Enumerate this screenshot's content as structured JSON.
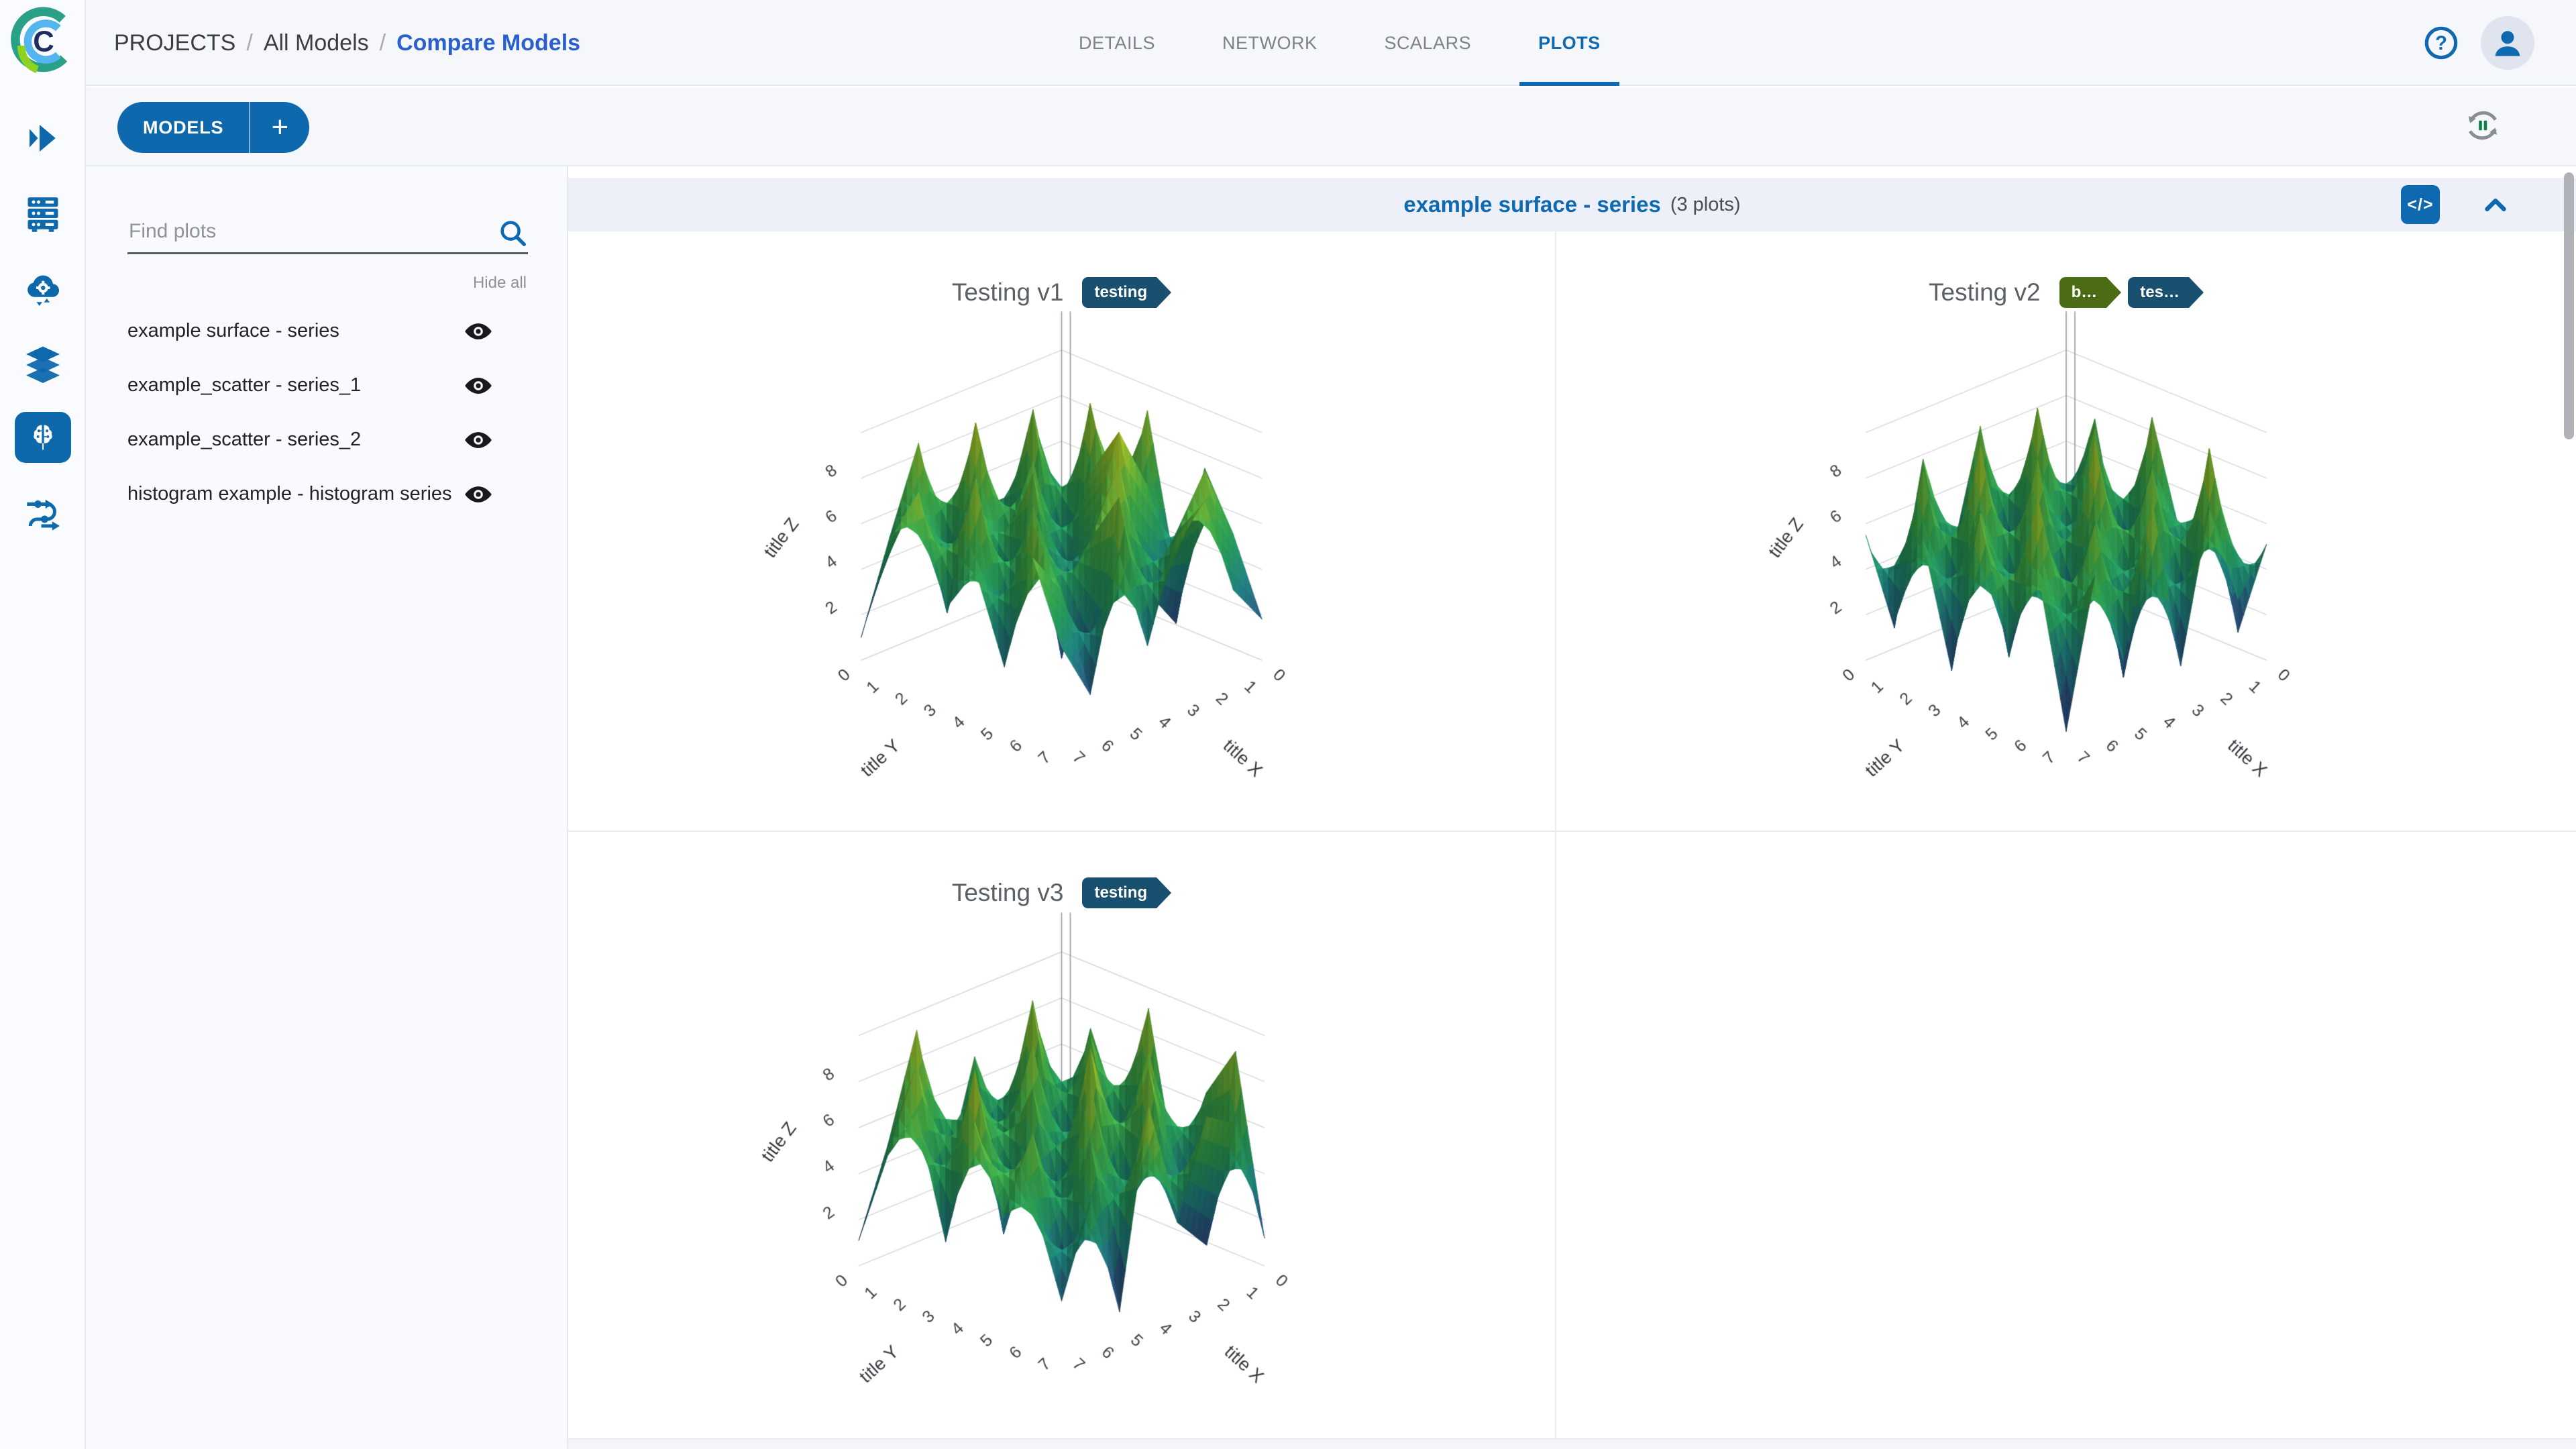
{
  "header": {
    "breadcrumb": [
      {
        "label": "PROJECTS"
      },
      {
        "label": "All Models"
      },
      {
        "label": "Compare Models"
      }
    ],
    "breadcrumb_separator": "/",
    "tabs": [
      {
        "label": "DETAILS",
        "active": false
      },
      {
        "label": "NETWORK",
        "active": false
      },
      {
        "label": "SCALARS",
        "active": false
      },
      {
        "label": "PLOTS",
        "active": true
      }
    ]
  },
  "nav_rail": {
    "items": [
      {
        "name": "expand-nav",
        "active": false
      },
      {
        "name": "storage",
        "active": false
      },
      {
        "name": "workers-queues",
        "active": false
      },
      {
        "name": "datasets",
        "active": false
      },
      {
        "name": "models",
        "active": true
      },
      {
        "name": "pipelines",
        "active": false
      }
    ]
  },
  "toolbar": {
    "models_label": "MODELS",
    "add_label": "+"
  },
  "plots_panel": {
    "search_placeholder": "Find plots",
    "hide_all_label": "Hide all",
    "items": [
      {
        "label": "example surface - series",
        "visible": true
      },
      {
        "label": "example_scatter - series_1",
        "visible": true
      },
      {
        "label": "example_scatter - series_2",
        "visible": true
      },
      {
        "label": "histogram example - histogram series",
        "visible": true
      }
    ]
  },
  "section": {
    "title": "example surface - series",
    "count": "(3 plots)",
    "embed_label": "</>"
  },
  "colors": {
    "primary_blue": "#0e69b1",
    "breadcrumb_link_blue": "#2a5fd0",
    "tag_navy": "#19506f",
    "tag_green": "#4c6b15",
    "panel_bg": "#f9fafd",
    "section_bar_bg": "#edf0f9",
    "scrollbar": "#b1b2b7",
    "surface_colorscale": [
      "#413487",
      "#2e648f",
      "#23908d",
      "#2aa964",
      "#48bd4e",
      "#90d43a",
      "#d2e227",
      "#f6e61f"
    ]
  },
  "chart_data": [
    {
      "type": "surface",
      "title": "Testing v1",
      "tags": [
        {
          "label": "testing",
          "color": "#19506f"
        }
      ],
      "xlabel": "title X",
      "ylabel": "title Y",
      "zlabel": "title Z",
      "x_ticks": [
        0,
        1,
        2,
        3,
        4,
        5,
        6,
        7
      ],
      "y_ticks": [
        0,
        1,
        2,
        3,
        4,
        5,
        6,
        7
      ],
      "z_ticks": [
        2,
        4,
        6,
        8
      ],
      "z_range": [
        0,
        10
      ],
      "z": [
        [
          1.2,
          6.8,
          3.1,
          8.9,
          2.2,
          7.4,
          5.0,
          1.8
        ],
        [
          7.9,
          2.4,
          9.2,
          4.1,
          6.6,
          1.1,
          8.3,
          3.6
        ],
        [
          3.4,
          8.8,
          1.5,
          7.2,
          9.5,
          3.0,
          6.1,
          8.0
        ],
        [
          6.2,
          0.8,
          7.7,
          2.9,
          5.4,
          9.1,
          1.9,
          6.9
        ],
        [
          2.1,
          9.4,
          4.6,
          8.2,
          0.6,
          6.3,
          8.7,
          2.7
        ],
        [
          8.5,
          3.7,
          6.5,
          1.4,
          7.8,
          4.4,
          0.9,
          7.3
        ],
        [
          4.9,
          7.1,
          2.6,
          9.0,
          3.3,
          8.1,
          5.6,
          1.6
        ],
        [
          1.0,
          5.8,
          8.4,
          3.9,
          6.0,
          2.3,
          7.6,
          4.2
        ]
      ]
    },
    {
      "type": "surface",
      "title": "Testing v2",
      "tags": [
        {
          "label": "b…",
          "color": "#4c6b15"
        },
        {
          "label": "tes…",
          "color": "#19506f"
        }
      ],
      "xlabel": "title X",
      "ylabel": "title Y",
      "zlabel": "title Z",
      "x_ticks": [
        0,
        1,
        2,
        3,
        4,
        5,
        6,
        7
      ],
      "y_ticks": [
        0,
        1,
        2,
        3,
        4,
        5,
        6,
        7
      ],
      "z_ticks": [
        2,
        4,
        6,
        8
      ],
      "z_range": [
        0,
        10
      ],
      "z": [
        [
          2.8,
          7.5,
          1.2,
          8.6,
          3.9,
          6.2,
          0.7,
          5.1
        ],
        [
          6.9,
          0.4,
          8.1,
          2.5,
          7.0,
          1.6,
          9.3,
          3.2
        ],
        [
          1.8,
          9.0,
          3.5,
          6.7,
          0.9,
          8.4,
          2.1,
          7.7
        ],
        [
          8.2,
          2.0,
          7.3,
          0.5,
          9.6,
          3.8,
          6.4,
          1.3
        ],
        [
          3.0,
          6.6,
          1.0,
          8.8,
          2.4,
          7.2,
          0.8,
          9.1
        ],
        [
          7.8,
          1.5,
          9.4,
          3.3,
          6.1,
          0.6,
          8.0,
          2.6
        ],
        [
          0.9,
          8.3,
          2.9,
          7.6,
          1.7,
          9.2,
          4.0,
          6.8
        ],
        [
          5.5,
          2.2,
          6.3,
          1.1,
          8.5,
          3.4,
          7.1,
          0.5
        ]
      ]
    },
    {
      "type": "surface",
      "title": "Testing v3",
      "tags": [
        {
          "label": "testing",
          "color": "#19506f"
        }
      ],
      "xlabel": "title X",
      "ylabel": "title Y",
      "zlabel": "title Z",
      "x_ticks": [
        0,
        1,
        2,
        3,
        4,
        5,
        6,
        7
      ],
      "y_ticks": [
        0,
        1,
        2,
        3,
        4,
        5,
        6,
        7
      ],
      "z_ticks": [
        2,
        4,
        6,
        8
      ],
      "z_range": [
        0,
        10
      ],
      "z": [
        [
          1.6,
          7.2,
          3.8,
          9.1,
          2.0,
          6.5,
          8.8,
          1.2
        ],
        [
          8.4,
          2.7,
          7.9,
          1.3,
          8.2,
          3.5,
          0.9,
          6.7
        ],
        [
          3.1,
          9.3,
          1.8,
          6.4,
          4.2,
          8.6,
          2.4,
          7.5
        ],
        [
          7.0,
          0.7,
          8.5,
          2.8,
          9.4,
          1.5,
          6.2,
          3.9
        ],
        [
          2.3,
          6.9,
          4.4,
          7.7,
          0.8,
          8.9,
          3.0,
          9.0
        ],
        [
          9.2,
          3.3,
          8.0,
          1.9,
          6.6,
          2.9,
          7.4,
          0.6
        ],
        [
          4.7,
          8.7,
          2.2,
          9.5,
          3.6,
          7.8,
          1.4,
          5.9
        ],
        [
          1.1,
          5.3,
          7.6,
          2.6,
          8.3,
          4.8,
          6.0,
          2.1
        ]
      ]
    }
  ]
}
